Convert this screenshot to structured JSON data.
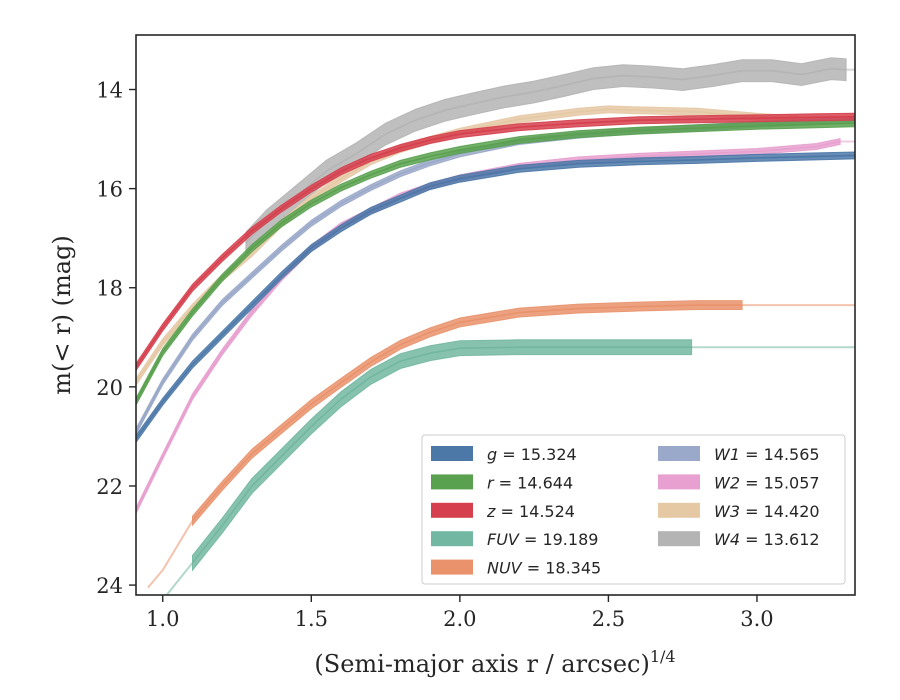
{
  "chart_data": {
    "type": "line",
    "xlabel": "(Semi-major axis r / arcsec)",
    "xlabel_var": "r",
    "xlabel_sup": "1/4",
    "ylabel": "m(< r) (mag)",
    "xlim": [
      0.91,
      3.33
    ],
    "ylim": [
      24.2,
      12.9
    ],
    "y_inverted": true,
    "x_ticks": [
      1.0,
      1.5,
      2.0,
      2.5,
      3.0
    ],
    "x_tick_labels": [
      "1.0",
      "1.5",
      "2.0",
      "2.5",
      "3.0"
    ],
    "y_ticks": [
      14,
      16,
      18,
      20,
      22,
      24
    ],
    "y_tick_labels": [
      "14",
      "16",
      "18",
      "20",
      "22",
      "24"
    ],
    "grid": false,
    "legend_position": "bottom-right",
    "series": [
      {
        "name": "g",
        "legend": "g = 15.324",
        "band": "g",
        "total": "15.324",
        "color": "#4c78a8",
        "band_width": 0.07,
        "x_start": 0.91,
        "x_end": 3.33,
        "x": [
          0.91,
          1.0,
          1.1,
          1.2,
          1.3,
          1.4,
          1.5,
          1.6,
          1.7,
          1.8,
          1.9,
          2.0,
          2.2,
          2.4,
          2.6,
          2.8,
          3.0,
          3.2,
          3.33
        ],
        "y": [
          21.05,
          20.3,
          19.55,
          18.95,
          18.35,
          17.75,
          17.2,
          16.8,
          16.45,
          16.2,
          15.95,
          15.8,
          15.6,
          15.5,
          15.45,
          15.42,
          15.38,
          15.35,
          15.33
        ]
      },
      {
        "name": "r",
        "legend": "r = 14.644",
        "band": "r",
        "total": "14.644",
        "color": "#59a14f",
        "band_width": 0.07,
        "x_start": 0.91,
        "x_end": 3.33,
        "x": [
          0.91,
          1.0,
          1.1,
          1.2,
          1.3,
          1.4,
          1.5,
          1.6,
          1.7,
          1.8,
          1.9,
          2.0,
          2.2,
          2.4,
          2.6,
          2.8,
          3.0,
          3.2,
          3.33
        ],
        "y": [
          20.3,
          19.3,
          18.5,
          17.8,
          17.2,
          16.7,
          16.3,
          15.98,
          15.72,
          15.5,
          15.35,
          15.22,
          15.02,
          14.9,
          14.83,
          14.78,
          14.73,
          14.7,
          14.68
        ]
      },
      {
        "name": "z",
        "legend": "z = 14.524",
        "band": "z",
        "total": "14.524",
        "color": "#d6404e",
        "band_width": 0.07,
        "x_start": 0.91,
        "x_end": 3.33,
        "x": [
          0.91,
          1.0,
          1.1,
          1.2,
          1.3,
          1.4,
          1.5,
          1.6,
          1.7,
          1.8,
          1.9,
          2.0,
          2.2,
          2.4,
          2.6,
          2.8,
          3.0,
          3.2,
          3.33
        ],
        "y": [
          19.6,
          18.8,
          18.0,
          17.4,
          16.85,
          16.4,
          16.0,
          15.65,
          15.38,
          15.18,
          15.02,
          14.9,
          14.76,
          14.68,
          14.62,
          14.6,
          14.58,
          14.56,
          14.55
        ]
      },
      {
        "name": "FUV",
        "legend": "FUV = 19.189",
        "band": "FUV",
        "total": "19.189",
        "color": "#72b7a1",
        "band_width": 0.15,
        "x_start": 1.1,
        "x_end": 2.78,
        "x": [
          1.1,
          1.2,
          1.3,
          1.4,
          1.5,
          1.6,
          1.7,
          1.8,
          1.9,
          2.0,
          2.2,
          2.4,
          2.6,
          2.78
        ],
        "y": [
          23.55,
          22.8,
          22.0,
          21.4,
          20.8,
          20.25,
          19.8,
          19.48,
          19.32,
          19.22,
          19.2,
          19.2,
          19.2,
          19.2
        ],
        "ext_x": [
          0.95,
          1.0,
          1.1
        ],
        "ext_y": [
          24.6,
          24.3,
          23.55
        ],
        "tail_end": 3.33
      },
      {
        "name": "NUV",
        "legend": "NUV = 18.345",
        "band": "NUV",
        "total": "18.345",
        "color": "#e9926b",
        "band_width": 0.09,
        "x_start": 1.1,
        "x_end": 2.95,
        "x": [
          1.1,
          1.2,
          1.3,
          1.4,
          1.5,
          1.6,
          1.7,
          1.8,
          1.9,
          2.0,
          2.2,
          2.4,
          2.6,
          2.8,
          2.95
        ],
        "y": [
          22.7,
          22.0,
          21.35,
          20.85,
          20.35,
          19.92,
          19.5,
          19.15,
          18.9,
          18.7,
          18.5,
          18.42,
          18.38,
          18.35,
          18.35
        ],
        "ext_x": [
          0.95,
          1.0,
          1.1
        ],
        "ext_y": [
          24.05,
          23.7,
          22.7
        ],
        "tail_end": 3.33
      },
      {
        "name": "W1",
        "legend": "W1 = 14.565",
        "band": "W1",
        "total": "14.565",
        "color": "#9aa8c9",
        "band_width": 0.06,
        "x_start": 0.91,
        "x_end": 3.33,
        "x": [
          0.91,
          1.0,
          1.1,
          1.2,
          1.3,
          1.4,
          1.5,
          1.6,
          1.7,
          1.8,
          1.9,
          2.0,
          2.2,
          2.4,
          2.6,
          2.8,
          3.0,
          3.2,
          3.33
        ],
        "y": [
          20.9,
          19.9,
          19.0,
          18.3,
          17.75,
          17.2,
          16.7,
          16.3,
          15.98,
          15.7,
          15.48,
          15.3,
          15.05,
          14.92,
          14.83,
          14.77,
          14.7,
          14.65,
          14.6
        ]
      },
      {
        "name": "W2",
        "legend": "W2 = 15.057",
        "band": "W2",
        "total": "15.057",
        "color": "#e7a0cf",
        "band_width": 0.06,
        "x_start": 0.91,
        "x_end": 3.28,
        "x": [
          0.91,
          1.0,
          1.1,
          1.2,
          1.3,
          1.4,
          1.5,
          1.6,
          1.7,
          1.8,
          1.9,
          2.0,
          2.2,
          2.4,
          2.6,
          2.8,
          3.0,
          3.2,
          3.28
        ],
        "y": [
          22.5,
          21.4,
          20.2,
          19.3,
          18.5,
          17.8,
          17.2,
          16.75,
          16.45,
          16.15,
          15.95,
          15.78,
          15.55,
          15.42,
          15.35,
          15.3,
          15.25,
          15.15,
          15.05
        ],
        "tail_end": 3.33
      },
      {
        "name": "W3",
        "legend": "W3 = 14.420",
        "band": "W3",
        "total": "14.420",
        "color": "#e5c8a4",
        "band_width": 0.07,
        "x_start": 0.91,
        "x_end": 3.14,
        "x": [
          0.91,
          1.0,
          1.1,
          1.2,
          1.3,
          1.4,
          1.5,
          1.6,
          1.7,
          1.8,
          1.9,
          2.0,
          2.2,
          2.4,
          2.5,
          2.6,
          2.8,
          3.0,
          3.14
        ],
        "y": [
          19.9,
          19.1,
          18.4,
          17.8,
          17.3,
          16.7,
          16.2,
          15.8,
          15.45,
          15.2,
          15.02,
          14.85,
          14.6,
          14.45,
          14.4,
          14.42,
          14.45,
          14.55,
          14.6
        ],
        "tail_end": 3.33
      },
      {
        "name": "W4",
        "legend": "W4 = 13.612",
        "band": "W4",
        "total": "13.612",
        "color": "#b4b4b4",
        "band_width": 0.22,
        "x_start": 1.28,
        "x_end": 3.3,
        "x": [
          1.28,
          1.35,
          1.45,
          1.55,
          1.65,
          1.75,
          1.85,
          1.95,
          2.05,
          2.15,
          2.25,
          2.35,
          2.45,
          2.55,
          2.65,
          2.75,
          2.85,
          2.95,
          3.05,
          3.15,
          3.25,
          3.3
        ],
        "y": [
          17.1,
          16.65,
          16.15,
          15.65,
          15.3,
          14.9,
          14.62,
          14.42,
          14.28,
          14.15,
          14.05,
          13.92,
          13.78,
          13.72,
          13.75,
          13.8,
          13.72,
          13.62,
          13.62,
          13.7,
          13.58,
          13.6
        ],
        "tail_end": 3.33
      }
    ]
  }
}
